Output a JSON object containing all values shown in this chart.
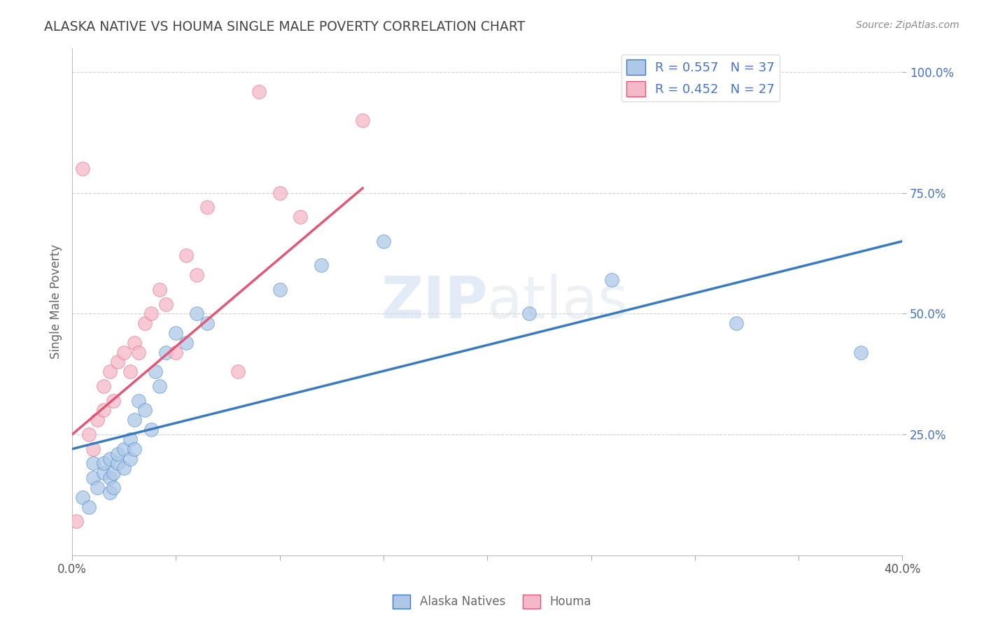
{
  "title": "ALASKA NATIVE VS HOUMA SINGLE MALE POVERTY CORRELATION CHART",
  "source": "Source: ZipAtlas.com",
  "ylabel": "Single Male Poverty",
  "ytick_labels": [
    "25.0%",
    "50.0%",
    "75.0%",
    "100.0%"
  ],
  "ytick_values": [
    0.25,
    0.5,
    0.75,
    1.0
  ],
  "xlim": [
    0.0,
    0.4
  ],
  "ylim": [
    0.0,
    1.05
  ],
  "blue_R": 0.557,
  "blue_N": 37,
  "pink_R": 0.452,
  "pink_N": 27,
  "blue_color": "#adc8e8",
  "pink_color": "#f5b8c8",
  "blue_line_color": "#3a7bbf",
  "pink_line_color": "#e05878",
  "legend_label_blue": "Alaska Natives",
  "legend_label_pink": "Houma",
  "watermark": "ZIPatlas",
  "blue_scatter_x": [
    0.005,
    0.008,
    0.01,
    0.01,
    0.012,
    0.015,
    0.015,
    0.018,
    0.018,
    0.018,
    0.02,
    0.02,
    0.022,
    0.022,
    0.025,
    0.025,
    0.028,
    0.028,
    0.03,
    0.03,
    0.032,
    0.035,
    0.038,
    0.04,
    0.042,
    0.045,
    0.05,
    0.055,
    0.06,
    0.065,
    0.1,
    0.12,
    0.15,
    0.22,
    0.26,
    0.32,
    0.38
  ],
  "blue_scatter_y": [
    0.12,
    0.1,
    0.16,
    0.19,
    0.14,
    0.17,
    0.19,
    0.13,
    0.16,
    0.2,
    0.14,
    0.17,
    0.19,
    0.21,
    0.18,
    0.22,
    0.2,
    0.24,
    0.22,
    0.28,
    0.32,
    0.3,
    0.26,
    0.38,
    0.35,
    0.42,
    0.46,
    0.44,
    0.5,
    0.48,
    0.55,
    0.6,
    0.65,
    0.5,
    0.57,
    0.48,
    0.42
  ],
  "pink_scatter_x": [
    0.002,
    0.005,
    0.008,
    0.01,
    0.012,
    0.015,
    0.015,
    0.018,
    0.02,
    0.022,
    0.025,
    0.028,
    0.03,
    0.032,
    0.035,
    0.038,
    0.042,
    0.045,
    0.05,
    0.055,
    0.06,
    0.065,
    0.08,
    0.09,
    0.1,
    0.11,
    0.14
  ],
  "pink_scatter_y": [
    0.07,
    0.8,
    0.25,
    0.22,
    0.28,
    0.3,
    0.35,
    0.38,
    0.32,
    0.4,
    0.42,
    0.38,
    0.44,
    0.42,
    0.48,
    0.5,
    0.55,
    0.52,
    0.42,
    0.62,
    0.58,
    0.72,
    0.38,
    0.96,
    0.75,
    0.7,
    0.9
  ],
  "blue_trend_x0": 0.0,
  "blue_trend_y0": 0.22,
  "blue_trend_x1": 0.4,
  "blue_trend_y1": 0.65,
  "pink_trend_x0": 0.0,
  "pink_trend_y0": 0.25,
  "pink_trend_x1": 0.14,
  "pink_trend_y1": 0.76
}
